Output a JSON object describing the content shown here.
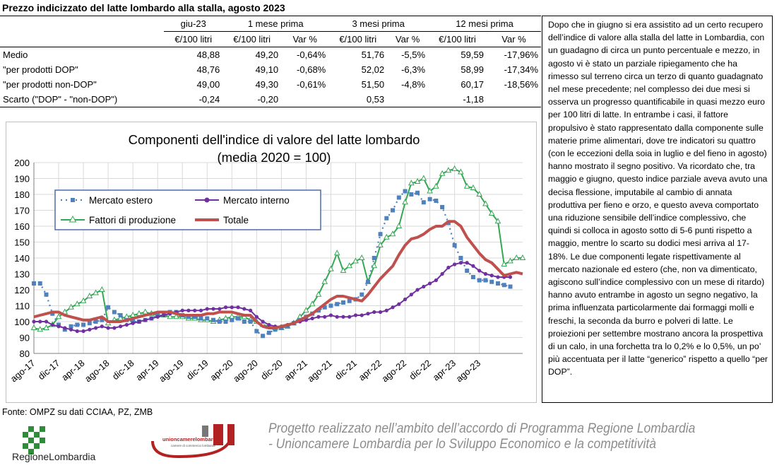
{
  "title": "Prezzo indicizzato del latte lombardo alla stalla, agosto 2023",
  "table": {
    "period_headers": [
      "giu-23",
      "1 mese prima",
      "3 mesi prima",
      "12 mesi prima"
    ],
    "unit_header": "€/100 litri",
    "var_header": "Var %",
    "rows": [
      {
        "label": "Medio",
        "v0": "48,88",
        "v1": "49,20",
        "p1": "-0,64%",
        "v3": "51,76",
        "p3": "-5,5%",
        "v12": "59,59",
        "p12": "-17,96%"
      },
      {
        "label": "\"per prodotti DOP\"",
        "v0": "48,76",
        "v1": "49,10",
        "p1": "-0,68%",
        "v3": "52,02",
        "p3": "-6,3%",
        "v12": "58,99",
        "p12": "-17,34%"
      },
      {
        "label": "\"per prodotti non-DOP\"",
        "v0": "49,00",
        "v1": "49,30",
        "p1": "-0,61%",
        "v3": "51,50",
        "p3": "-4,8%",
        "v12": "60,17",
        "p12": "-18,56%"
      },
      {
        "label": "Scarto (\"DOP\" - \"non-DOP\")",
        "v0": "-0,24",
        "v1": "-0,20",
        "p1": "",
        "v3": "0,53",
        "p3": "",
        "v12": "-1,18",
        "p12": ""
      }
    ]
  },
  "commentary": "Dopo che in giugno si era assistito ad un certo recupero dell’indice di valore alla stalla del latte in Lombardia, con un guadagno di circa un punto percentuale e mezzo, in agosto vi è stato un parziale ripiegamento che ha rimesso sul terreno circa un terzo di quanto guadagnato nel mese precedente; nel complesso dei due mesi si osserva un progresso quantificabile in quasi mezzo euro per 100 litri di latte. In entrambe i casi, il fattore propulsivo è stato rappresentato dalla componente sulle materie prime alimentari, dove tre indicatori su quattro (con le eccezioni della soia in luglio e del fieno in agosto) hanno mostrato il segno positivo. Va ricordato che, tra maggio e giugno, questo indice parziale aveva avuto una decisa flessione, imputabile al cambio di annata produttiva per fieno e orzo, e questo aveva comportato una riduzione sensibile dell’indice complessivo, che quindi si colloca in agosto sotto di 5-6 punti rispetto a maggio, mentre lo scarto su dodici mesi arriva al 17-18%. Le due componenti legate rispettivamente al mercato nazionale ed estero (che, non va dimenticato, agiscono sull’indice complessivo con un mese di ritardo) hanno avuto entrambe in agosto un segno negativo, la prima influenzata particolarmente dai formaggi molli e freschi, la seconda da burro e polveri di latte. Le proiezioni per settembre mostrano ancora la prospettiva di un calo, in una forchetta tra lo 0,2% e lo 0,5%, un po’ più accentuata per il latte “generico” rispetto a quello “per DOP”.",
  "source": "Fonte: OMPZ su dati CCIAA, PZ, ZMB",
  "footer": {
    "line1": "Progetto realizzato nell’ambito dell’accordo di Programma Regione Lombardia",
    "line2": "- Unioncamere Lombardia per lo Sviluppo Economico e la competitività"
  },
  "logos": {
    "regione": "RegioneLombardia",
    "unioncamere": "unioncamerelombardia",
    "unioncamere_sub": "camere di commercio lombarde"
  },
  "colors": {
    "estero": "#4F81BD",
    "interno": "#7030A0",
    "fattori": "#33A853",
    "totale": "#C0504D"
  },
  "chart_data": {
    "type": "line",
    "title": "Componenti dell'indice di valore del latte lombardo",
    "subtitle": "(media 2020 = 100)",
    "ylim": [
      80,
      200
    ],
    "yticks": [
      80,
      90,
      100,
      110,
      120,
      130,
      140,
      150,
      160,
      170,
      180,
      190,
      200
    ],
    "x_start": "ago-17",
    "xtick_labels": [
      "ago-17",
      "dic-17",
      "apr-18",
      "ago-18",
      "dic-18",
      "apr-19",
      "ago-19",
      "dic-19",
      "apr-20",
      "ago-20",
      "dic-20",
      "apr-21",
      "ago-21",
      "dic-21",
      "apr-22",
      "ago-22",
      "dic-22",
      "apr-23",
      "ago-23"
    ],
    "grid": true,
    "legend": "top-left",
    "series": [
      {
        "name": "Mercato estero",
        "key": "estero",
        "values": [
          124,
          124,
          117,
          105,
          98,
          95,
          97,
          98,
          98,
          99,
          100,
          101,
          109,
          106,
          104,
          101,
          100,
          100,
          101,
          102,
          104,
          105,
          106,
          106,
          104,
          103,
          103,
          102,
          102,
          101,
          100,
          100,
          101,
          102,
          100,
          100,
          94,
          91,
          93,
          95,
          96,
          97,
          99,
          101,
          103,
          105,
          107,
          109,
          110,
          111,
          112,
          113,
          114,
          117,
          125,
          140,
          155,
          165,
          170,
          178,
          182,
          180,
          181,
          175,
          177,
          176,
          172,
          162,
          148,
          140,
          132,
          128,
          126,
          126,
          125,
          124,
          123,
          122
        ]
      },
      {
        "name": "Mercato interno",
        "key": "interno",
        "values": [
          100,
          100,
          100,
          98,
          97,
          96,
          95,
          94,
          94,
          95,
          96,
          97,
          96,
          96,
          97,
          98,
          99,
          100,
          101,
          102,
          103,
          104,
          105,
          106,
          107,
          107,
          107,
          107,
          108,
          108,
          108,
          109,
          109,
          109,
          108,
          107,
          103,
          100,
          98,
          97,
          97,
          98,
          99,
          100,
          101,
          102,
          103,
          103,
          104,
          103,
          103,
          103,
          104,
          104,
          105,
          106,
          106,
          107,
          109,
          111,
          114,
          117,
          120,
          122,
          124,
          126,
          130,
          134,
          136,
          137,
          137,
          135,
          132,
          130,
          129,
          128,
          128,
          128
        ]
      },
      {
        "name": "Fattori di produzione",
        "key": "fattori",
        "values": [
          96,
          95,
          96,
          98,
          103,
          106,
          109,
          111,
          113,
          116,
          118,
          120,
          99,
          101,
          102,
          103,
          104,
          105,
          106,
          105,
          104,
          104,
          103,
          103,
          103,
          102,
          102,
          101,
          101,
          100,
          101,
          102,
          103,
          103,
          103,
          101,
          100,
          98,
          97,
          96,
          96,
          97,
          99,
          103,
          107,
          111,
          117,
          125,
          133,
          143,
          132,
          135,
          138,
          140,
          125,
          135,
          148,
          153,
          155,
          160,
          175,
          187,
          188,
          190,
          182,
          185,
          193,
          195,
          196,
          194,
          185,
          184,
          180,
          174,
          168,
          163,
          136,
          138,
          140,
          140
        ]
      },
      {
        "name": "Totale",
        "key": "totale",
        "values": [
          103,
          104,
          105,
          106,
          106,
          104,
          103,
          102,
          101,
          101,
          102,
          103,
          100,
          100,
          100,
          101,
          102,
          103,
          104,
          105,
          106,
          106,
          106,
          105,
          104,
          104,
          104,
          104,
          105,
          105,
          106,
          106,
          106,
          105,
          104,
          104,
          100,
          97,
          96,
          96,
          97,
          98,
          99,
          101,
          103,
          105,
          108,
          111,
          114,
          116,
          116,
          115,
          114,
          113,
          117,
          122,
          127,
          131,
          135,
          142,
          148,
          152,
          153,
          155,
          158,
          160,
          160,
          163,
          163,
          160,
          153,
          148,
          143,
          139,
          137,
          133,
          129,
          130,
          131,
          130
        ]
      }
    ]
  }
}
